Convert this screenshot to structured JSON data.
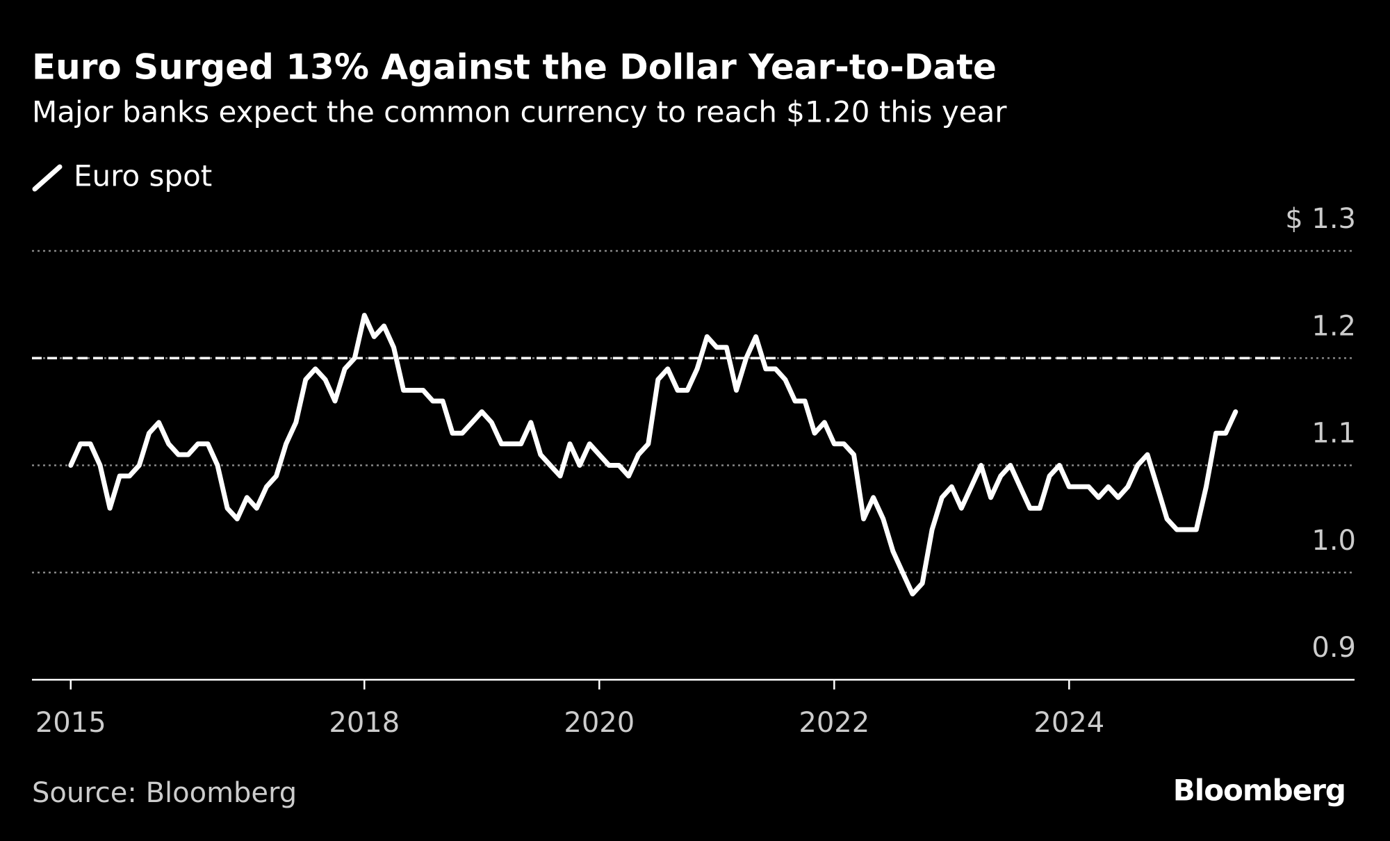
{
  "chart_data": {
    "type": "line",
    "title": "Euro Surged 13% Against the Dollar Year-to-Date",
    "subtitle": "Major banks expect the common currency to reach $1.20 this year",
    "source": "Source: Bloomberg",
    "brand": "Bloomberg",
    "x": [
      2015.5,
      2015.583,
      2015.667,
      2015.75,
      2015.833,
      2015.917,
      2016,
      2016.083,
      2016.167,
      2016.25,
      2016.333,
      2016.417,
      2016.5,
      2016.583,
      2016.667,
      2016.75,
      2016.833,
      2016.917,
      2017,
      2017.083,
      2017.167,
      2017.25,
      2017.333,
      2017.417,
      2017.5,
      2017.583,
      2017.667,
      2017.75,
      2017.833,
      2017.917,
      2018,
      2018.083,
      2018.167,
      2018.25,
      2018.333,
      2018.417,
      2018.5,
      2018.583,
      2018.667,
      2018.75,
      2018.833,
      2018.917,
      2019,
      2019.083,
      2019.167,
      2019.25,
      2019.333,
      2019.417,
      2019.5,
      2019.583,
      2019.667,
      2019.75,
      2019.833,
      2019.917,
      2020,
      2020.083,
      2020.167,
      2020.25,
      2020.333,
      2020.417,
      2020.5,
      2020.583,
      2020.667,
      2020.75,
      2020.833,
      2020.917,
      2021,
      2021.083,
      2021.167,
      2021.25,
      2021.333,
      2021.417,
      2021.5,
      2021.583,
      2021.667,
      2021.75,
      2021.833,
      2021.917,
      2022,
      2022.083,
      2022.167,
      2022.25,
      2022.333,
      2022.417,
      2022.5,
      2022.583,
      2022.667,
      2022.75,
      2022.833,
      2022.917,
      2023,
      2023.083,
      2023.167,
      2023.25,
      2023.333,
      2023.417,
      2023.5,
      2023.583,
      2023.667,
      2023.75,
      2023.833,
      2023.917,
      2024,
      2024.083,
      2024.167,
      2024.25,
      2024.333,
      2024.417,
      2024.5,
      2024.583,
      2024.667,
      2024.75,
      2024.833,
      2024.917,
      2025,
      2025.083,
      2025.167,
      2025.25,
      2025.333,
      2025.417
    ],
    "series": [
      {
        "name": "Euro spot",
        "color": "#ffffff",
        "values": [
          1.1,
          1.12,
          1.12,
          1.1,
          1.06,
          1.09,
          1.09,
          1.1,
          1.13,
          1.14,
          1.12,
          1.11,
          1.11,
          1.12,
          1.12,
          1.1,
          1.06,
          1.05,
          1.07,
          1.06,
          1.08,
          1.09,
          1.12,
          1.14,
          1.18,
          1.19,
          1.18,
          1.16,
          1.19,
          1.2,
          1.24,
          1.22,
          1.23,
          1.21,
          1.17,
          1.17,
          1.17,
          1.16,
          1.16,
          1.13,
          1.13,
          1.14,
          1.15,
          1.14,
          1.12,
          1.12,
          1.12,
          1.14,
          1.11,
          1.1,
          1.09,
          1.12,
          1.1,
          1.12,
          1.11,
          1.1,
          1.1,
          1.09,
          1.11,
          1.12,
          1.18,
          1.19,
          1.17,
          1.17,
          1.19,
          1.22,
          1.21,
          1.21,
          1.17,
          1.2,
          1.22,
          1.19,
          1.19,
          1.18,
          1.16,
          1.16,
          1.13,
          1.14,
          1.12,
          1.12,
          1.11,
          1.05,
          1.07,
          1.05,
          1.02,
          1.0,
          0.98,
          0.99,
          1.04,
          1.07,
          1.08,
          1.06,
          1.08,
          1.1,
          1.07,
          1.09,
          1.1,
          1.08,
          1.06,
          1.06,
          1.09,
          1.1,
          1.08,
          1.08,
          1.08,
          1.07,
          1.08,
          1.07,
          1.08,
          1.1,
          1.11,
          1.08,
          1.05,
          1.04,
          1.04,
          1.04,
          1.08,
          1.13,
          1.13,
          1.15
        ]
      }
    ],
    "reference_line": 1.2,
    "xlim": [
      2015.17,
      2026.43
    ],
    "xticks": [
      {
        "value": 2015.5,
        "label": "2015"
      },
      2018,
      2020,
      2022,
      2024
    ],
    "ylim": [
      0.9,
      1.3
    ],
    "yticks": [
      {
        "value": 0.9,
        "label": "0.9"
      },
      {
        "value": 1,
        "label": "1.0"
      },
      1.1,
      1.2,
      {
        "value": 1.3,
        "label": "$ 1.3"
      }
    ],
    "grid": true
  }
}
